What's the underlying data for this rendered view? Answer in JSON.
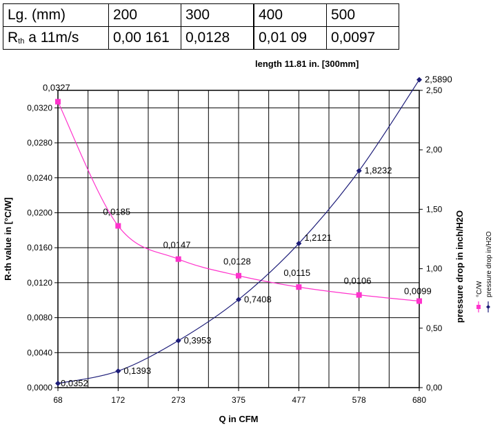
{
  "spec_table": {
    "header": [
      "Lg. (mm)",
      "200",
      "300",
      "400",
      "500"
    ],
    "row_label_main": "R",
    "row_label_sub": "th",
    "row_label_rest": " a 11m/s",
    "row_values": [
      "0,00 161",
      "0,0128",
      "0,01 09",
      "0,0097"
    ]
  },
  "chart_data": {
    "type": "line",
    "title": "length 11.81 in. [300mm]",
    "xlabel": "Q in CFM",
    "ylabel": "R-th value in [°C/W]",
    "y2label": "pressure drop in inch/H2O",
    "x": [
      68,
      172,
      273,
      375,
      477,
      578,
      680
    ],
    "x_tick_labels": [
      "68",
      "172",
      "273",
      "375",
      "477",
      "578",
      "680"
    ],
    "ylim": [
      0,
      0.034
    ],
    "y_ticks": [
      0,
      0.004,
      0.008,
      0.012,
      0.016,
      0.02,
      0.024,
      0.028,
      0.032
    ],
    "y_tick_labels": [
      "0,0000",
      "0,0040",
      "0,0080",
      "0,0120",
      "0,0160",
      "0,0200",
      "0,0240",
      "0,0280",
      "0,0320"
    ],
    "y2lim": [
      0,
      2.5
    ],
    "y2_ticks": [
      0,
      0.5,
      1.0,
      1.5,
      2.0,
      2.5
    ],
    "y2_tick_labels": [
      "0,00",
      "0,50",
      "1,00",
      "1,50",
      "2,00",
      "2,50"
    ],
    "grid": true,
    "legend_position": "right",
    "series": [
      {
        "name": "°C/W",
        "axis": "left",
        "color": "#ff33cc",
        "marker": "square",
        "values": [
          0.0327,
          0.0185,
          0.0147,
          0.0128,
          0.0115,
          0.0106,
          0.0099
        ],
        "labels": [
          "0,0327",
          "0,0185",
          "0,0147",
          "0,0128",
          "0,0115",
          "0,0106",
          "0,0099"
        ]
      },
      {
        "name": "pressure drop in/H2O",
        "axis": "right",
        "color": "#1c1c78",
        "marker": "diamond",
        "values": [
          0.0352,
          0.1393,
          0.3953,
          0.7408,
          1.2121,
          1.8232,
          2.589
        ],
        "labels": [
          "0,0352",
          "0,1393",
          "0,3953",
          "0,7408",
          "1,2121",
          "1,8232",
          "2,5890"
        ]
      }
    ]
  }
}
